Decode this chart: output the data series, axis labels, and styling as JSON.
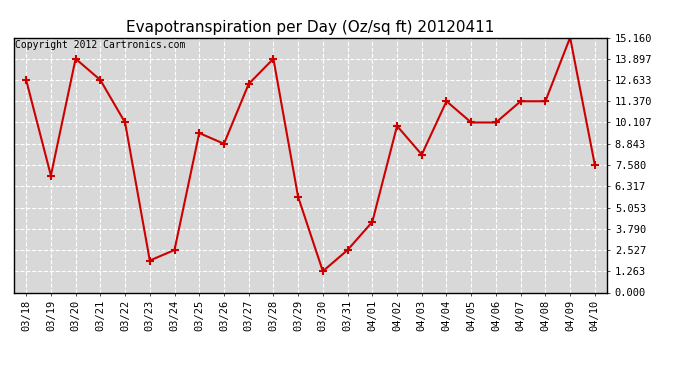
{
  "title": "Evapotranspiration per Day (Oz/sq ft) 20120411",
  "copyright": "Copyright 2012 Cartronics.com",
  "x_labels": [
    "03/18",
    "03/19",
    "03/20",
    "03/21",
    "03/22",
    "03/23",
    "03/24",
    "03/25",
    "03/26",
    "03/27",
    "03/28",
    "03/29",
    "03/30",
    "03/31",
    "04/01",
    "04/02",
    "04/03",
    "04/04",
    "04/05",
    "04/06",
    "04/07",
    "04/08",
    "04/09",
    "04/10"
  ],
  "y_values": [
    12.633,
    6.95,
    13.897,
    12.633,
    10.107,
    1.9,
    2.527,
    9.48,
    8.843,
    12.4,
    13.897,
    5.68,
    1.263,
    2.527,
    4.2,
    9.9,
    8.2,
    11.37,
    10.107,
    10.107,
    11.37,
    11.37,
    15.16,
    7.58
  ],
  "y_ticks": [
    0.0,
    1.263,
    2.527,
    3.79,
    5.053,
    6.317,
    7.58,
    8.843,
    10.107,
    11.37,
    12.633,
    13.897,
    15.16
  ],
  "line_color": "#cc0000",
  "marker": "+",
  "marker_size": 6,
  "marker_edge_width": 1.5,
  "line_width": 1.5,
  "background_color": "#ffffff",
  "plot_bg_color": "#d8d8d8",
  "grid_color": "#ffffff",
  "title_fontsize": 11,
  "copyright_fontsize": 7,
  "tick_fontsize": 7.5,
  "ylim": [
    0.0,
    15.16
  ],
  "figsize": [
    6.9,
    3.75
  ],
  "dpi": 100
}
